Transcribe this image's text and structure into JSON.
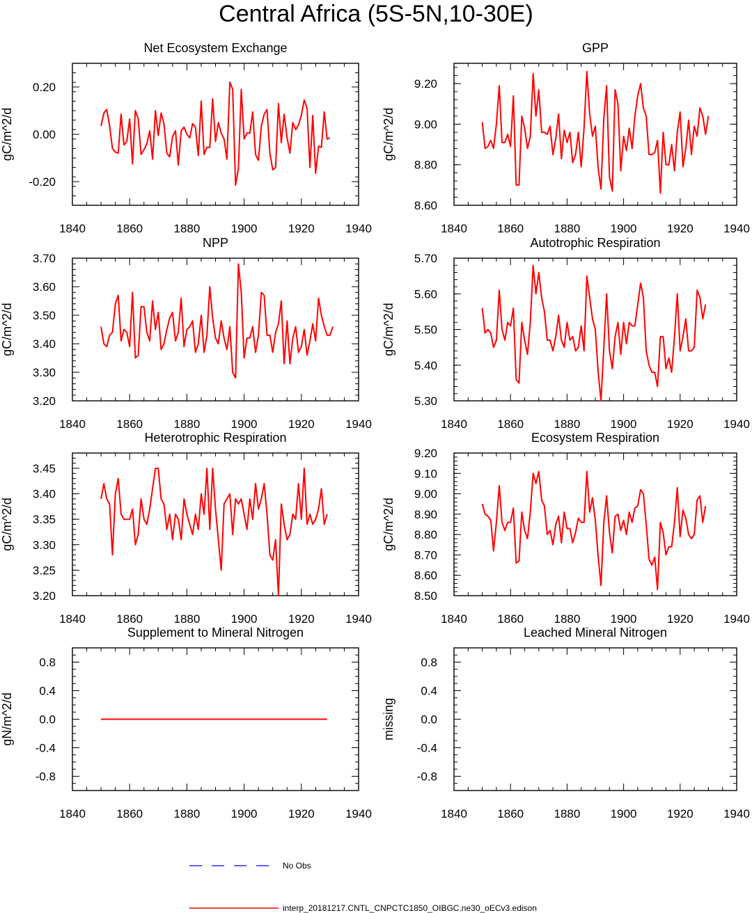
{
  "title": "Central Africa (5S-5N,10-30E)",
  "colors": {
    "model": "#ff0000",
    "obs": "#0000ff",
    "axis": "#000000"
  },
  "legend": {
    "obs_label": "No Obs",
    "model_label": "interp_20181217.CNTL_CNPCTC1850_OIBGC.ne30_oECv3.edison"
  },
  "chart_data": [
    {
      "type": "line",
      "title": "Net Ecosystem Exchange",
      "ylabel": "gC/m^2/d",
      "xlim": [
        1840,
        1940
      ],
      "ylim": [
        -0.3,
        0.3
      ],
      "xticks": [
        "1840",
        "1860",
        "1880",
        "1900",
        "1920",
        "1940"
      ],
      "yticks": [
        -0.2,
        0.0,
        0.2
      ],
      "ytick_labels": [
        "-0.20",
        "0.00",
        "0.20"
      ],
      "x_start": 1850,
      "values": [
        0.035,
        0.09,
        0.105,
        0.035,
        -0.06,
        -0.075,
        -0.08,
        0.085,
        -0.045,
        -0.03,
        0.065,
        -0.125,
        0.1,
        0.065,
        -0.085,
        -0.065,
        -0.04,
        0.015,
        -0.105,
        0.1,
        -0.005,
        0.09,
        0.045,
        -0.08,
        -0.095,
        -0.01,
        0.015,
        -0.13,
        0.015,
        0.03,
        0.0,
        -0.015,
        0.045,
        0.03,
        -0.09,
        0.14,
        -0.085,
        -0.055,
        -0.055,
        0.15,
        -0.03,
        0.05,
        0.005,
        -0.02,
        -0.105,
        0.22,
        0.19,
        -0.215,
        -0.145,
        0.19,
        -0.02,
        0.005,
        0.005,
        0.095,
        -0.085,
        -0.11,
        0.035,
        0.085,
        0.105,
        -0.08,
        -0.15,
        -0.14,
        0.13,
        -0.035,
        0.085,
        -0.015,
        -0.08,
        0.05,
        0.02,
        0.04,
        0.08,
        0.145,
        0.11,
        -0.14,
        0.08,
        -0.165,
        -0.05,
        -0.055,
        0.095,
        -0.02,
        -0.015
      ]
    },
    {
      "type": "line",
      "title": "GPP",
      "ylabel": "gC/m^2/d",
      "xlim": [
        1840,
        1940
      ],
      "ylim": [
        8.6,
        9.3
      ],
      "xticks": [
        "1840",
        "1860",
        "1880",
        "1900",
        "1920",
        "1940"
      ],
      "yticks": [
        8.6,
        8.8,
        9.0,
        9.2
      ],
      "ytick_labels": [
        "8.60",
        "8.80",
        "9.00",
        "9.20"
      ],
      "x_start": 1850,
      "values": [
        9.01,
        8.88,
        8.89,
        8.92,
        8.88,
        9.0,
        9.19,
        8.91,
        8.91,
        8.95,
        8.89,
        9.14,
        8.7,
        8.7,
        9.04,
        8.98,
        8.88,
        8.94,
        9.25,
        9.04,
        9.17,
        8.96,
        8.96,
        8.95,
        8.99,
        8.85,
        8.93,
        9.05,
        8.83,
        8.97,
        8.91,
        8.96,
        8.81,
        8.85,
        8.96,
        8.79,
        8.98,
        9.26,
        9.05,
        8.94,
        8.99,
        8.78,
        8.68,
        9.03,
        9.19,
        8.74,
        8.67,
        9.17,
        9.1,
        8.77,
        8.94,
        8.87,
        8.98,
        8.88,
        9.04,
        9.14,
        9.2,
        9.08,
        9.04,
        8.85,
        8.85,
        8.86,
        8.92,
        8.66,
        8.96,
        8.8,
        8.8,
        8.9,
        8.77,
        8.96,
        9.06,
        8.79,
        8.88,
        9.02,
        8.85,
        8.99,
        8.94,
        9.08,
        9.04,
        8.95,
        9.04
      ]
    },
    {
      "type": "line",
      "title": "NPP",
      "ylabel": "gC/m^2/d",
      "xlim": [
        1840,
        1940
      ],
      "ylim": [
        3.2,
        3.7
      ],
      "xticks": [
        "1840",
        "1860",
        "1880",
        "1900",
        "1920",
        "1940"
      ],
      "yticks": [
        3.2,
        3.3,
        3.4,
        3.5,
        3.6,
        3.7
      ],
      "ytick_labels": [
        "3.20",
        "3.30",
        "3.40",
        "3.50",
        "3.60",
        "3.70"
      ],
      "x_start": 1850,
      "values": [
        3.46,
        3.4,
        3.39,
        3.43,
        3.44,
        3.54,
        3.57,
        3.41,
        3.45,
        3.44,
        3.39,
        3.58,
        3.35,
        3.36,
        3.53,
        3.53,
        3.44,
        3.41,
        3.55,
        3.45,
        3.51,
        3.38,
        3.4,
        3.45,
        3.49,
        3.51,
        3.41,
        3.44,
        3.56,
        3.39,
        3.45,
        3.46,
        3.48,
        3.37,
        3.4,
        3.5,
        3.37,
        3.43,
        3.6,
        3.49,
        3.42,
        3.4,
        3.48,
        3.42,
        3.38,
        3.46,
        3.3,
        3.28,
        3.68,
        3.58,
        3.35,
        3.42,
        3.42,
        3.46,
        3.37,
        3.43,
        3.58,
        3.57,
        3.43,
        3.43,
        3.37,
        3.44,
        3.47,
        3.55,
        3.33,
        3.48,
        3.33,
        3.42,
        3.46,
        3.37,
        3.39,
        3.45,
        3.36,
        3.41,
        3.47,
        3.41,
        3.56,
        3.5,
        3.46,
        3.43,
        3.43,
        3.46
      ]
    },
    {
      "type": "line",
      "title": "Autotrophic Respiration",
      "ylabel": "gC/m^2/d",
      "xlim": [
        1840,
        1940
      ],
      "ylim": [
        5.3,
        5.7
      ],
      "xticks": [
        "1840",
        "1860",
        "1880",
        "1900",
        "1920",
        "1940"
      ],
      "yticks": [
        5.3,
        5.4,
        5.5,
        5.6,
        5.7
      ],
      "ytick_labels": [
        "5.30",
        "5.40",
        "5.50",
        "5.60",
        "5.70"
      ],
      "x_start": 1850,
      "values": [
        5.56,
        5.49,
        5.5,
        5.49,
        5.45,
        5.47,
        5.61,
        5.5,
        5.47,
        5.52,
        5.51,
        5.56,
        5.36,
        5.35,
        5.52,
        5.47,
        5.43,
        5.52,
        5.68,
        5.6,
        5.66,
        5.59,
        5.55,
        5.47,
        5.47,
        5.44,
        5.48,
        5.54,
        5.47,
        5.45,
        5.52,
        5.47,
        5.48,
        5.44,
        5.45,
        5.51,
        5.44,
        5.65,
        5.59,
        5.53,
        5.5,
        5.38,
        5.3,
        5.45,
        5.6,
        5.44,
        5.39,
        5.48,
        5.52,
        5.43,
        5.52,
        5.46,
        5.52,
        5.51,
        5.51,
        5.57,
        5.63,
        5.59,
        5.44,
        5.4,
        5.38,
        5.38,
        5.34,
        5.48,
        5.48,
        5.39,
        5.42,
        5.38,
        5.48,
        5.6,
        5.44,
        5.48,
        5.53,
        5.44,
        5.44,
        5.45,
        5.61,
        5.59,
        5.53,
        5.57
      ]
    },
    {
      "type": "line",
      "title": "Heterotrophic Respiration",
      "ylabel": "gC/m^2/d",
      "xlim": [
        1840,
        1940
      ],
      "ylim": [
        3.2,
        3.48
      ],
      "xticks": [
        "1840",
        "1860",
        "1880",
        "1900",
        "1920",
        "1940"
      ],
      "yticks": [
        3.2,
        3.25,
        3.3,
        3.35,
        3.4,
        3.45
      ],
      "ytick_labels": [
        "3.20",
        "3.25",
        "3.30",
        "3.35",
        "3.40",
        "3.45"
      ],
      "x_start": 1850,
      "values": [
        3.39,
        3.42,
        3.39,
        3.38,
        3.28,
        3.4,
        3.43,
        3.36,
        3.35,
        3.35,
        3.35,
        3.37,
        3.3,
        3.32,
        3.39,
        3.35,
        3.34,
        3.37,
        3.41,
        3.45,
        3.45,
        3.39,
        3.38,
        3.33,
        3.36,
        3.31,
        3.36,
        3.35,
        3.31,
        3.39,
        3.36,
        3.34,
        3.32,
        3.36,
        3.33,
        3.4,
        3.36,
        3.45,
        3.33,
        3.45,
        3.37,
        3.31,
        3.25,
        3.38,
        3.39,
        3.4,
        3.32,
        3.39,
        3.38,
        3.39,
        3.36,
        3.33,
        3.39,
        3.35,
        3.42,
        3.37,
        3.39,
        3.42,
        3.36,
        3.28,
        3.27,
        3.31,
        3.2,
        3.38,
        3.34,
        3.31,
        3.32,
        3.36,
        3.35,
        3.42,
        3.35,
        3.45,
        3.34,
        3.36,
        3.34,
        3.35,
        3.37,
        3.41,
        3.34,
        3.36
      ]
    },
    {
      "type": "line",
      "title": "Ecosystem Respiration",
      "ylabel": "gC/m^2/d",
      "xlim": [
        1840,
        1940
      ],
      "ylim": [
        8.5,
        9.2
      ],
      "xticks": [
        "1840",
        "1860",
        "1880",
        "1900",
        "1920",
        "1940"
      ],
      "yticks": [
        8.5,
        8.6,
        8.7,
        8.8,
        8.9,
        9.0,
        9.1,
        9.2
      ],
      "ytick_labels": [
        "8.50",
        "8.60",
        "8.70",
        "8.80",
        "8.90",
        "9.00",
        "9.10",
        "9.20"
      ],
      "x_start": 1850,
      "values": [
        8.95,
        8.9,
        8.89,
        8.87,
        8.72,
        8.86,
        9.04,
        8.86,
        8.82,
        8.86,
        8.86,
        8.93,
        8.66,
        8.67,
        8.91,
        8.82,
        8.78,
        8.91,
        9.1,
        9.05,
        9.11,
        8.97,
        8.94,
        8.8,
        8.82,
        8.75,
        8.85,
        8.89,
        8.76,
        8.91,
        8.83,
        8.83,
        8.76,
        8.81,
        8.88,
        8.86,
        8.86,
        9.11,
        8.91,
        8.98,
        8.87,
        8.69,
        8.55,
        8.86,
        8.99,
        8.81,
        8.71,
        8.89,
        8.9,
        8.82,
        8.87,
        8.8,
        8.91,
        8.86,
        8.93,
        8.94,
        9.02,
        9.0,
        8.85,
        8.68,
        8.65,
        8.69,
        8.53,
        8.86,
        8.81,
        8.7,
        8.74,
        8.74,
        8.86,
        9.03,
        8.79,
        8.92,
        8.88,
        8.8,
        8.78,
        8.8,
        8.97,
        8.99,
        8.86,
        8.94
      ]
    },
    {
      "type": "line",
      "title": "Supplement to Mineral Nitrogen",
      "ylabel": "gN/m^2/d",
      "xlim": [
        1840,
        1940
      ],
      "ylim": [
        -1.0,
        1.0
      ],
      "xticks": [
        "1840",
        "1860",
        "1880",
        "1900",
        "1920",
        "1940"
      ],
      "yticks": [
        -0.8,
        -0.4,
        0.0,
        0.4,
        0.8
      ],
      "ytick_labels": [
        "-0.8",
        "-0.4",
        "0.0",
        "0.4",
        "0.8"
      ],
      "x_start": 1850,
      "values": [
        0,
        0,
        0,
        0,
        0,
        0,
        0,
        0,
        0,
        0,
        0,
        0,
        0,
        0,
        0,
        0,
        0,
        0,
        0,
        0,
        0,
        0,
        0,
        0,
        0,
        0,
        0,
        0,
        0,
        0,
        0,
        0,
        0,
        0,
        0,
        0,
        0,
        0,
        0,
        0,
        0,
        0,
        0,
        0,
        0,
        0,
        0,
        0,
        0,
        0,
        0,
        0,
        0,
        0,
        0,
        0,
        0,
        0,
        0,
        0,
        0,
        0,
        0,
        0,
        0,
        0,
        0,
        0,
        0,
        0,
        0,
        0,
        0,
        0,
        0,
        0,
        0,
        0,
        0,
        0
      ]
    },
    {
      "type": "line",
      "title": "Leached Mineral Nitrogen",
      "ylabel": "missing",
      "xlim": [
        1840,
        1940
      ],
      "ylim": [
        -1.0,
        1.0
      ],
      "xticks": [
        "1840",
        "1860",
        "1880",
        "1900",
        "1920",
        "1940"
      ],
      "yticks": [
        -0.8,
        -0.4,
        0.0,
        0.4,
        0.8
      ],
      "ytick_labels": [
        "-0.8",
        "-0.4",
        "0.0",
        "0.4",
        "0.8"
      ],
      "x_start": 1850,
      "values": []
    }
  ]
}
